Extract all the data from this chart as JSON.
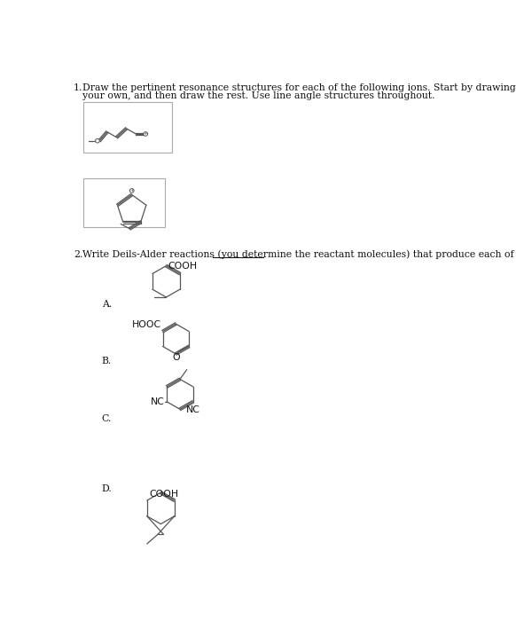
{
  "bg_color": "#ffffff",
  "text_color": "#111111",
  "line_color": "#555555",
  "fig_w": 5.82,
  "fig_h": 7.0,
  "dpi": 100,
  "q1_line1": "Draw the pertinent resonance structures for each of the following ions. Start by drawing the structures given on",
  "q1_line2": "your own, and then draw the rest. Use line angle structures throughout.",
  "q2_pre": "Write Deils-Alder reactions (you determine the ",
  "q2_ul": "reactant molecules",
  "q2_post": ") that produce each of the following."
}
